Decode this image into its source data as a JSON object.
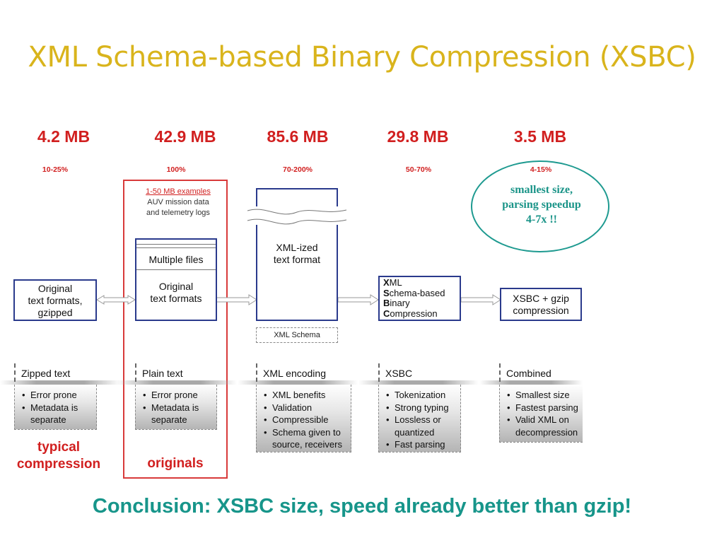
{
  "title": "XML Schema-based Binary Compression (XSBC)",
  "sizes": [
    "4.2 MB",
    "42.9 MB",
    "85.6 MB",
    "29.8 MB",
    "3.5 MB"
  ],
  "percents": [
    "10-25%",
    "100%",
    "70-200%",
    "50-70%",
    "4-15%"
  ],
  "note": {
    "line1": "1-50  MB examples",
    "line2": "AUV mission data",
    "line3": "and telemetry logs"
  },
  "callout": {
    "line1": "smallest size,",
    "line2": "parsing speedup",
    "line3": "4-7x !!"
  },
  "boxes": {
    "original_gz": [
      "Original",
      "text formats,",
      "gzipped"
    ],
    "multiple_files": "Multiple files",
    "original_text": [
      "Original",
      "text formats"
    ],
    "xml_ized": [
      "XML-ized",
      "text format"
    ],
    "xsbc": [
      {
        "b": "X",
        "r": "ML"
      },
      {
        "b": "S",
        "r": "chema-based"
      },
      {
        "b": "B",
        "r": "inary"
      },
      {
        "b": "C",
        "r": "ompression"
      }
    ],
    "xsbc_gzip": [
      "XSBC + gzip",
      "compression"
    ],
    "xml_schema": "XML Schema"
  },
  "panels": [
    {
      "label": "Zipped text",
      "items": [
        "Error prone",
        "Metadata is separate"
      ]
    },
    {
      "label": "Plain text",
      "items": [
        "Error prone",
        "Metadata is separate"
      ]
    },
    {
      "label": "XML encoding",
      "items": [
        "XML benefits",
        "Validation",
        "Compressible",
        "Schema given to source, receivers"
      ]
    },
    {
      "label": "XSBC",
      "items": [
        "Tokenization",
        "Strong typing",
        "Lossless or quantized",
        "Fast parsing"
      ]
    },
    {
      "label": "Combined",
      "items": [
        "Smallest size",
        "Fastest parsing",
        "Valid XML on decompression"
      ]
    }
  ],
  "labels": {
    "typical_line1": "typical",
    "typical_line2": "compression",
    "originals": "originals"
  },
  "conclusion": "Conclusion:  XSBC size, speed already better than gzip!",
  "colors": {
    "title": "#d9b41c",
    "red": "#d11f1f",
    "teal": "#17958a",
    "box_border": "#2a3a8c"
  }
}
